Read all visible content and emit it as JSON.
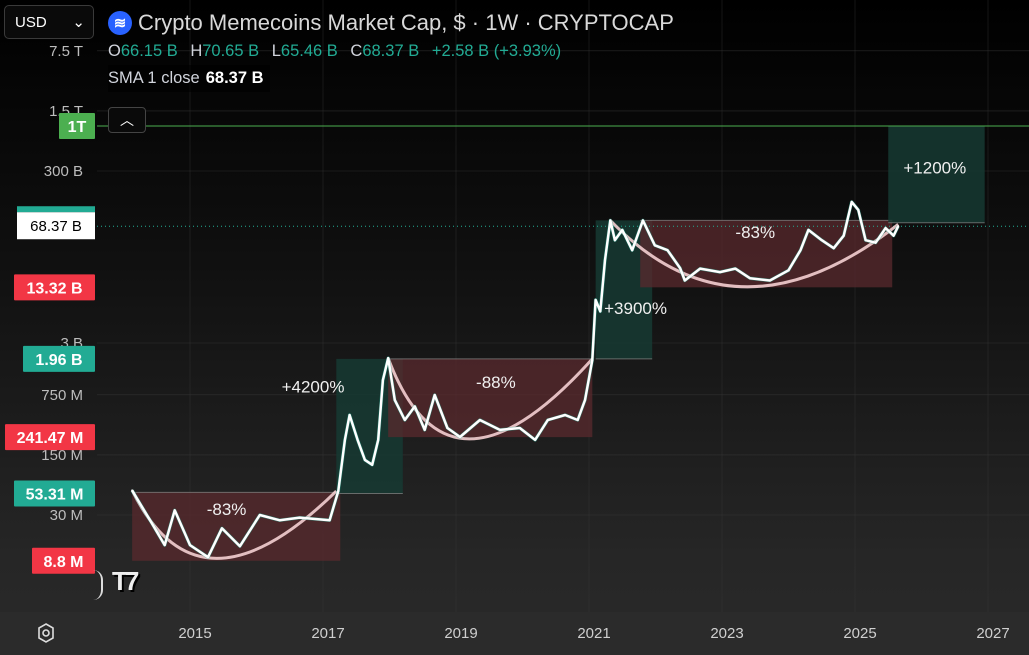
{
  "toolbar": {
    "currency": "USD",
    "currency_chevron": "⌄"
  },
  "legend": {
    "title": "Crypto Memecoins Market Cap, $ · 1W · CRYPTOCAP",
    "open_label": "O",
    "open": "66.15 B",
    "high_label": "H",
    "high": "70.65 B",
    "low_label": "L",
    "low": "65.46 B",
    "close_label": "C",
    "close": "68.37 B",
    "change": "+2.58 B (+3.93%)",
    "sma_label": "SMA 1 close",
    "sma_value": "68.37 B"
  },
  "colors": {
    "up": "#22ab94",
    "down": "#f23645",
    "line": "#ffffff",
    "sma": "#f4cfd2",
    "green_level": "#4caf50",
    "gain_box": "#163a32",
    "loss_box": "#5a2a2e"
  },
  "icons": {
    "logo": "memecoin-logo",
    "collapse": "chevron-up-icon",
    "settings": "settings-hex-icon",
    "brand": "tradingview-logo"
  },
  "chart_data": {
    "type": "line",
    "title": "Crypto Memecoins Market Cap, $ · 1W · CRYPTOCAP",
    "xlabel": "",
    "ylabel": "",
    "yscale": "log",
    "xlim": [
      2013.45,
      2027.7
    ],
    "ylim": [
      3000000,
      30000000000000
    ],
    "x_ticks": [
      "2015",
      "2017",
      "2019",
      "2021",
      "2023",
      "2025",
      "2027"
    ],
    "x_tick_values": [
      2015,
      2017,
      2019,
      2021,
      2023,
      2025,
      2027
    ],
    "y_ticks": [
      {
        "label": "7.5 T",
        "value": 7500000000000.0
      },
      {
        "label": "1.5 T",
        "value": 1500000000000.0
      },
      {
        "label": "300 B",
        "value": 300000000000.0
      },
      {
        "label": "3 B",
        "value": 3000000000.0
      },
      {
        "label": "750 M",
        "value": 750000000.0
      },
      {
        "label": "150 M",
        "value": 150000000.0
      },
      {
        "label": "30 M",
        "value": 30000000.0
      }
    ],
    "price_labels": [
      {
        "label": "1T",
        "value": 1000000000000.0,
        "kind": "green"
      },
      {
        "label": "68.37 B",
        "value": 68370000000.0,
        "kind": "current"
      },
      {
        "label": "13.32 B",
        "value": 13320000000.0,
        "kind": "red"
      },
      {
        "label": "1.96 B",
        "value": 1960000000.0,
        "kind": "green"
      },
      {
        "label": "241.47 M",
        "value": 241470000.0,
        "kind": "red"
      },
      {
        "label": "53.31 M",
        "value": 53310000.0,
        "kind": "green"
      },
      {
        "label": "8.8 M",
        "value": 8800000.0,
        "kind": "red"
      }
    ],
    "series": [
      {
        "name": "Memecoins market cap",
        "points": [
          [
            2014.13,
            58000000.0
          ],
          [
            2014.4,
            26000000.0
          ],
          [
            2014.62,
            13400000.0
          ],
          [
            2014.77,
            34000000.0
          ],
          [
            2015.0,
            13400000.0
          ],
          [
            2015.27,
            9700000.0
          ],
          [
            2015.48,
            21000000.0
          ],
          [
            2015.75,
            13000000.0
          ],
          [
            2016.05,
            30000000.0
          ],
          [
            2016.35,
            26000000.0
          ],
          [
            2016.65,
            28000000.0
          ],
          [
            2017.1,
            26000000.0
          ],
          [
            2017.23,
            57000000.0
          ],
          [
            2017.33,
            224000000.0
          ],
          [
            2017.4,
            437000000.0
          ],
          [
            2017.52,
            224000000.0
          ],
          [
            2017.63,
            131000000.0
          ],
          [
            2017.74,
            115000000.0
          ],
          [
            2017.83,
            224000000.0
          ],
          [
            2017.9,
            1110000000.0
          ],
          [
            2017.98,
            2000000000.0
          ],
          [
            2018.08,
            650000000.0
          ],
          [
            2018.23,
            382000000.0
          ],
          [
            2018.38,
            550000000.0
          ],
          [
            2018.53,
            293000000.0
          ],
          [
            2018.68,
            745000000.0
          ],
          [
            2018.87,
            308000000.0
          ],
          [
            2019.06,
            242000000.0
          ],
          [
            2019.36,
            382000000.0
          ],
          [
            2019.66,
            293000000.0
          ],
          [
            2019.96,
            308000000.0
          ],
          [
            2020.19,
            224000000.0
          ],
          [
            2020.38,
            382000000.0
          ],
          [
            2020.64,
            437000000.0
          ],
          [
            2020.83,
            382000000.0
          ],
          [
            2020.94,
            650000000.0
          ],
          [
            2021.05,
            1900000000.0
          ],
          [
            2021.1,
            9500000000.0
          ],
          [
            2021.17,
            7000000000.0
          ],
          [
            2021.24,
            27600000000.0
          ],
          [
            2021.32,
            80000000000.0
          ],
          [
            2021.39,
            47000000000.0
          ],
          [
            2021.5,
            62000000000.0
          ],
          [
            2021.65,
            36000000000.0
          ],
          [
            2021.81,
            80000000000.0
          ],
          [
            2021.99,
            41000000000.0
          ],
          [
            2022.18,
            36000000000.0
          ],
          [
            2022.37,
            22300000000.0
          ],
          [
            2022.44,
            16000000000.0
          ],
          [
            2022.67,
            22000000000.0
          ],
          [
            2022.97,
            20000000000.0
          ],
          [
            2023.2,
            22000000000.0
          ],
          [
            2023.42,
            17000000000.0
          ],
          [
            2023.72,
            16000000000.0
          ],
          [
            2024.0,
            21000000000.0
          ],
          [
            2024.18,
            36000000000.0
          ],
          [
            2024.3,
            62000000000.0
          ],
          [
            2024.5,
            47000000000.0
          ],
          [
            2024.68,
            38000000000.0
          ],
          [
            2024.83,
            53000000000.0
          ],
          [
            2024.95,
            131000000000.0
          ],
          [
            2025.05,
            106000000000.0
          ],
          [
            2025.16,
            47000000000.0
          ],
          [
            2025.31,
            44000000000.0
          ],
          [
            2025.46,
            65000000000.0
          ],
          [
            2025.58,
            53000000000.0
          ],
          [
            2025.65,
            68370000000.0
          ]
        ]
      }
    ],
    "boxes": [
      {
        "label": "-83%",
        "kind": "loss",
        "x": [
          2014.13,
          2017.26
        ],
        "y": [
          8800000.0,
          55000000.0
        ],
        "label_at": [
          2015.55,
          30000000.0
        ]
      },
      {
        "label": "+4200%",
        "kind": "gain",
        "x": [
          2017.2,
          2018.2
        ],
        "y": [
          53310000.0,
          1960000000.0
        ],
        "label_at": [
          2016.85,
          800000000.0
        ]
      },
      {
        "label": "-88%",
        "kind": "loss",
        "x": [
          2017.98,
          2021.05
        ],
        "y": [
          241470000.0,
          1960000000.0
        ],
        "label_at": [
          2019.6,
          900000000.0
        ]
      },
      {
        "label": "+3900%",
        "kind": "gain",
        "x": [
          2021.1,
          2021.95
        ],
        "y": [
          1960000000.0,
          80000000000.0
        ],
        "label_at": [
          2021.7,
          6500000000.0
        ]
      },
      {
        "label": "-83%",
        "kind": "loss",
        "x": [
          2021.77,
          2025.56
        ],
        "y": [
          13320000000.0,
          80000000000.0
        ],
        "label_at": [
          2023.5,
          50000000000.0
        ]
      },
      {
        "label": "+1200%",
        "kind": "gain",
        "x": [
          2025.5,
          2026.95
        ],
        "y": [
          75000000000.0,
          1000000000000.0
        ],
        "label_at": [
          2026.2,
          280000000000.0
        ]
      }
    ],
    "sma_arcs": [
      {
        "start": [
          2014.13,
          58000000.0
        ],
        "bottom": [
          2015.4,
          9400000.0
        ],
        "end": [
          2017.2,
          57000000.0
        ]
      },
      {
        "start": [
          2017.98,
          2000000000.0
        ],
        "bottom": [
          2019.2,
          230000000.0
        ],
        "end": [
          2021.05,
          1960000000.0
        ]
      },
      {
        "start": [
          2021.32,
          80000000000.0
        ],
        "bottom": [
          2023.35,
          13500000000.0
        ],
        "end": [
          2025.65,
          72000000000.0
        ]
      }
    ],
    "levels": [
      {
        "value": 1000000000000.0,
        "style": "solid",
        "color": "green"
      },
      {
        "value": 68370000000.0,
        "style": "dotted",
        "color": "teal"
      }
    ],
    "grid": true,
    "legend": "top-left"
  },
  "time_axis": {
    "labels": [
      "2015",
      "2017",
      "2019",
      "2021",
      "2023",
      "2025",
      "2027"
    ]
  }
}
